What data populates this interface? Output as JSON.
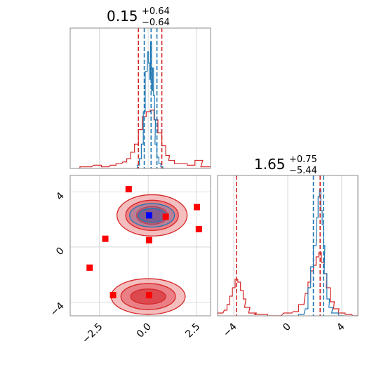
{
  "chart_data": {
    "type": "corner",
    "colors": {
      "series_a": "#1f77b4",
      "series_b": "#d62728",
      "marker_dark": "#0000ff",
      "marker_light": "#ff0000"
    },
    "grid": true,
    "parameters": [
      {
        "index": 0,
        "title": {
          "median": "0.15",
          "plus": "+0.64",
          "minus": "−0.64"
        },
        "range": [
          -4.0,
          3.2
        ],
        "ticks": [
          -2.5,
          0.0,
          2.5
        ],
        "tick_labels": [
          "−2.5",
          "0.0",
          "2.5"
        ],
        "quantile_lines_a": [
          -0.2,
          0.15,
          0.45
        ],
        "quantile_lines_b": [
          -0.5,
          0.7
        ]
      },
      {
        "index": 1,
        "title": {
          "median": "1.65",
          "plus": "+0.75",
          "minus": "−5.44"
        },
        "range": [
          -5.2,
          5.2
        ],
        "ticks": [
          -4,
          0,
          4
        ],
        "tick_labels": [
          "−4",
          "0",
          "4"
        ],
        "quantile_lines_a": [
          1.9,
          2.65
        ],
        "quantile_lines_b": [
          -3.8,
          2.4
        ]
      }
    ],
    "joint_ylim": [
      -5.0,
      5.2
    ],
    "marginal_0": {
      "series_a": {
        "x": [
          -0.6,
          -0.5,
          -0.4,
          -0.3,
          -0.2,
          -0.1,
          0.0,
          0.05,
          0.1,
          0.15,
          0.2,
          0.25,
          0.3,
          0.35,
          0.4,
          0.5,
          0.6,
          0.7,
          0.8
        ],
        "y": [
          0,
          0.02,
          0.06,
          0.15,
          0.35,
          0.6,
          0.72,
          0.65,
          0.55,
          0.78,
          0.48,
          0.62,
          0.45,
          0.3,
          0.15,
          0.07,
          0.03,
          0.01,
          0
        ]
      },
      "series_b": {
        "x": [
          -3.2,
          -2.6,
          -2.2,
          -1.8,
          -1.5,
          -1.2,
          -1.0,
          -0.8,
          -0.6,
          -0.4,
          -0.2,
          0.0,
          0.2,
          0.4,
          0.6,
          0.8,
          1.0,
          1.2,
          1.5,
          1.8,
          2.2,
          2.6,
          3.0
        ],
        "y": [
          0.01,
          0.02,
          0.01,
          0.02,
          0.03,
          0.04,
          0.06,
          0.1,
          0.15,
          0.24,
          0.32,
          0.35,
          0.36,
          0.3,
          0.22,
          0.14,
          0.08,
          0.05,
          0.03,
          0.03,
          0.02,
          0.05,
          0.01
        ]
      }
    },
    "marginal_1": {
      "series_a": {
        "x": [
          1.0,
          1.4,
          1.6,
          1.8,
          2.0,
          2.2,
          2.3,
          2.4,
          2.5,
          2.6,
          2.7,
          2.8,
          3.0,
          3.2,
          3.5,
          4.0
        ],
        "y": [
          0.01,
          0.05,
          0.2,
          0.35,
          0.5,
          0.7,
          0.85,
          0.9,
          0.75,
          0.65,
          0.5,
          0.3,
          0.12,
          0.06,
          0.02,
          0.0
        ]
      },
      "series_b": {
        "x": [
          -5.0,
          -4.6,
          -4.4,
          -4.2,
          -4.0,
          -3.8,
          -3.6,
          -3.4,
          -3.2,
          -3.0,
          -2.6,
          -2.0,
          -1.0,
          0.0,
          0.6,
          1.0,
          1.4,
          1.6,
          1.8,
          2.0,
          2.2,
          2.4,
          2.6,
          2.8,
          3.0,
          3.3,
          3.6,
          4.0,
          4.5,
          5.0
        ],
        "y": [
          0.02,
          0.04,
          0.08,
          0.14,
          0.2,
          0.26,
          0.24,
          0.18,
          0.12,
          0.06,
          0.02,
          0.01,
          0.0,
          0.02,
          0.03,
          0.08,
          0.16,
          0.24,
          0.32,
          0.36,
          0.42,
          0.45,
          0.38,
          0.3,
          0.2,
          0.1,
          0.05,
          0.02,
          0.01,
          0.0
        ]
      }
    },
    "joint": {
      "series_a_points": [
        [
          0.05,
          2.3
        ]
      ],
      "series_b_points": [
        [
          -1.0,
          4.2
        ],
        [
          -2.2,
          0.6
        ],
        [
          -3.0,
          -1.5
        ],
        [
          -1.8,
          -3.5
        ],
        [
          0.05,
          0.5
        ],
        [
          0.05,
          -3.5
        ],
        [
          0.9,
          2.2
        ],
        [
          2.5,
          2.9
        ],
        [
          2.6,
          1.3
        ]
      ],
      "series_b_modes": [
        {
          "center": [
            0.2,
            2.3
          ],
          "rx": [
            1.8,
            1.35,
            0.8
          ],
          "ry": [
            1.5,
            1.1,
            0.65
          ]
        },
        {
          "center": [
            0.0,
            -3.6
          ],
          "rx": [
            1.9,
            1.4,
            0.9
          ],
          "ry": [
            1.3,
            0.95,
            0.55
          ]
        }
      ],
      "series_a_mode": {
        "center": [
          0.2,
          2.3
        ],
        "rx": [
          1.15,
          0.7
        ],
        "ry": [
          0.85,
          0.5
        ]
      }
    }
  }
}
